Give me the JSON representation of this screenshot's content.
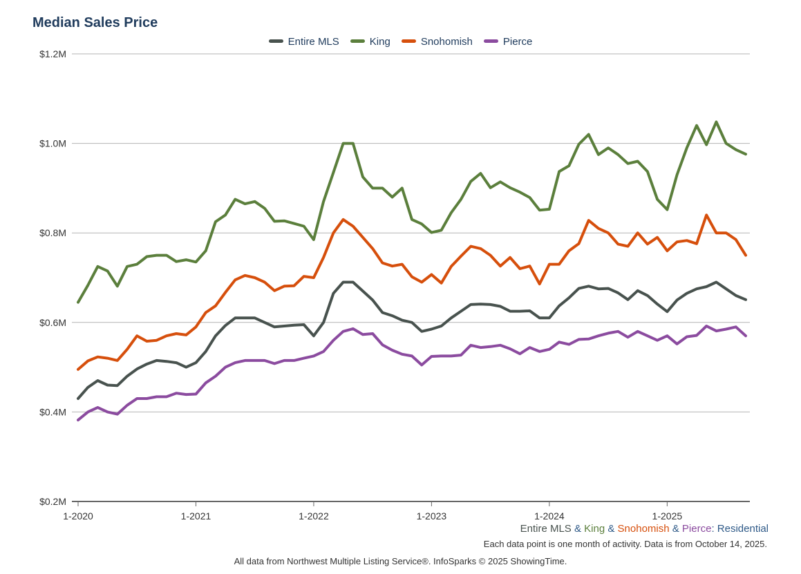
{
  "chart_data": {
    "type": "line",
    "title": "Median Sales Price",
    "ylim": [
      200000,
      1200000
    ],
    "y_ticks": [
      {
        "value": 200000,
        "label": "$0.2M"
      },
      {
        "value": 400000,
        "label": "$0.4M"
      },
      {
        "value": 600000,
        "label": "$0.6M"
      },
      {
        "value": 800000,
        "label": "$0.8M"
      },
      {
        "value": 1000000,
        "label": "$1.0M"
      },
      {
        "value": 1200000,
        "label": "$1.2M"
      }
    ],
    "x_ticks": [
      {
        "index": 0,
        "label": "1-2020"
      },
      {
        "index": 12,
        "label": "1-2021"
      },
      {
        "index": 24,
        "label": "1-2022"
      },
      {
        "index": 36,
        "label": "1-2023"
      },
      {
        "index": 48,
        "label": "1-2024"
      },
      {
        "index": 60,
        "label": "1-2025"
      }
    ],
    "months": 69,
    "series": [
      {
        "name": "Entire MLS",
        "color": "#48524e",
        "values": [
          430,
          455,
          470,
          460,
          459,
          480,
          496,
          507,
          515,
          513,
          510,
          500,
          510,
          535,
          570,
          593,
          610,
          610,
          610,
          600,
          590,
          592,
          594,
          595,
          570,
          600,
          665,
          690,
          690,
          670,
          650,
          622,
          615,
          605,
          600,
          580,
          585,
          592,
          610,
          625,
          640,
          641,
          640,
          636,
          625,
          625,
          626,
          610,
          610,
          637,
          655,
          676,
          681,
          675,
          676,
          666,
          651,
          671,
          660,
          641,
          624,
          650,
          665,
          675,
          680,
          690,
          675,
          660,
          651
        ]
      },
      {
        "name": "King",
        "color": "#5b7f3c",
        "values": [
          645,
          683,
          725,
          715,
          681,
          725,
          730,
          747,
          750,
          750,
          736,
          740,
          735,
          760,
          825,
          840,
          875,
          865,
          870,
          855,
          826,
          827,
          821,
          815,
          785,
          870,
          935,
          1000,
          1000,
          925,
          900,
          900,
          880,
          900,
          830,
          820,
          801,
          806,
          845,
          875,
          915,
          933,
          901,
          914,
          901,
          891,
          879,
          851,
          853,
          937,
          950,
          998,
          1020,
          975,
          990,
          975,
          955,
          960,
          937,
          875,
          852,
          930,
          990,
          1040,
          997,
          1048,
          1000,
          986,
          976
        ]
      },
      {
        "name": "Snohomish",
        "color": "#d64f0c",
        "values": [
          495,
          514,
          523,
          520,
          515,
          540,
          570,
          558,
          560,
          570,
          575,
          572,
          590,
          622,
          637,
          667,
          695,
          705,
          700,
          690,
          671,
          681,
          682,
          703,
          700,
          745,
          800,
          830,
          815,
          790,
          765,
          733,
          726,
          730,
          702,
          690,
          707,
          688,
          725,
          748,
          770,
          765,
          750,
          726,
          745,
          720,
          726,
          686,
          730,
          730,
          760,
          776,
          828,
          810,
          800,
          775,
          770,
          800,
          775,
          790,
          760,
          780,
          783,
          776,
          840,
          800,
          800,
          785,
          750
        ]
      },
      {
        "name": "Pierce",
        "color": "#8b4b9f",
        "values": [
          382,
          400,
          410,
          400,
          395,
          415,
          430,
          430,
          434,
          434,
          442,
          439,
          440,
          465,
          480,
          500,
          510,
          515,
          515,
          515,
          508,
          515,
          515,
          520,
          525,
          535,
          560,
          580,
          586,
          573,
          575,
          550,
          538,
          529,
          525,
          505,
          524,
          525,
          525,
          527,
          549,
          544,
          546,
          549,
          541,
          530,
          544,
          535,
          540,
          556,
          551,
          562,
          563,
          570,
          576,
          580,
          567,
          580,
          570,
          560,
          570,
          552,
          568,
          571,
          592,
          581,
          585,
          590,
          570
        ]
      }
    ],
    "legend": "top-center"
  },
  "caption": {
    "parts": [
      {
        "text": "Entire MLS",
        "color": "#48524e"
      },
      {
        "text": " & ",
        "color": "#2f5a88"
      },
      {
        "text": "King",
        "color": "#5b7f3c"
      },
      {
        "text": " & ",
        "color": "#2f5a88"
      },
      {
        "text": "Snohomish",
        "color": "#d64f0c"
      },
      {
        "text": " & ",
        "color": "#2f5a88"
      },
      {
        "text": "Pierce",
        "color": "#8b4b9f"
      },
      {
        "text": ": Residential",
        "color": "#2f5a88"
      }
    ]
  },
  "note": "Each data point is one month of activity. Data is from October 14, 2025.",
  "footer": "All data from Northwest Multiple Listing Service®. InfoSparks © 2025 ShowingTime."
}
